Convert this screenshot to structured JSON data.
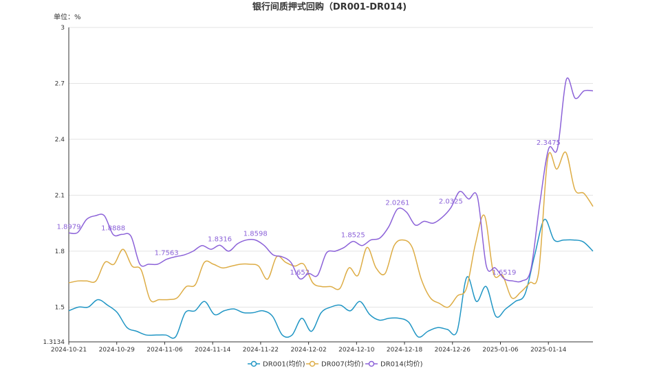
{
  "chart_data": {
    "type": "line",
    "title": "银行间质押式回购（DR001-DR014)",
    "unit_label": "单位：%",
    "ylim": [
      1.3134,
      3
    ],
    "y_ticks": [
      "1.3134",
      "1.5",
      "1.8",
      "2.1",
      "2.4",
      "2.7",
      "3"
    ],
    "x_ticks": [
      "2024-10-21",
      "2024-10-29",
      "2024-11-06",
      "2024-11-14",
      "2024-11-22",
      "2024-12-02",
      "2024-12-10",
      "2024-12-18",
      "2024-12-26",
      "2025-01-06",
      "2025-01-14"
    ],
    "grid": "horizontal",
    "legend_position": "bottom-center",
    "series": [
      {
        "name": "DR001(均价)",
        "color": "#1f95c4",
        "values": [
          1.48,
          1.5,
          1.5,
          1.54,
          1.51,
          1.47,
          1.39,
          1.37,
          1.35,
          1.35,
          1.35,
          1.34,
          1.47,
          1.48,
          1.53,
          1.46,
          1.48,
          1.49,
          1.47,
          1.47,
          1.48,
          1.45,
          1.35,
          1.35,
          1.44,
          1.37,
          1.47,
          1.5,
          1.51,
          1.48,
          1.53,
          1.46,
          1.43,
          1.44,
          1.44,
          1.42,
          1.34,
          1.37,
          1.39,
          1.38,
          1.37,
          1.66,
          1.53,
          1.61,
          1.45,
          1.49,
          1.53,
          1.57,
          1.78,
          1.97,
          1.86,
          1.86,
          1.86,
          1.85,
          1.8
        ]
      },
      {
        "name": "DR007(均价)",
        "color": "#ddac44",
        "values": [
          1.63,
          1.64,
          1.64,
          1.64,
          1.74,
          1.73,
          1.81,
          1.72,
          1.7,
          1.54,
          1.54,
          1.54,
          1.55,
          1.61,
          1.62,
          1.74,
          1.73,
          1.71,
          1.72,
          1.73,
          1.73,
          1.72,
          1.65,
          1.77,
          1.74,
          1.72,
          1.73,
          1.63,
          1.61,
          1.61,
          1.6,
          1.71,
          1.67,
          1.82,
          1.71,
          1.68,
          1.83,
          1.86,
          1.82,
          1.65,
          1.55,
          1.52,
          1.5,
          1.56,
          1.6,
          1.84,
          1.99,
          1.68,
          1.67,
          1.55,
          1.58,
          1.63,
          1.69,
          2.3,
          2.24,
          2.33,
          2.13,
          2.11,
          2.04
        ]
      },
      {
        "name": "DR014(均价)",
        "color": "#8b61d8",
        "values": [
          1.8979,
          1.9,
          1.97,
          1.99,
          1.99,
          1.8888,
          1.89,
          1.88,
          1.73,
          1.73,
          1.73,
          1.7563,
          1.77,
          1.78,
          1.8,
          1.83,
          1.81,
          1.8316,
          1.8,
          1.84,
          1.86,
          1.8598,
          1.83,
          1.78,
          1.77,
          1.74,
          1.652,
          1.68,
          1.67,
          1.79,
          1.8,
          1.82,
          1.8525,
          1.83,
          1.86,
          1.87,
          1.93,
          2.0261,
          2.01,
          1.94,
          1.96,
          1.95,
          1.98,
          2.0325,
          2.12,
          2.08,
          2.09,
          1.72,
          1.71,
          1.6519,
          1.64,
          1.64,
          1.7,
          2.05,
          2.3475,
          2.35,
          2.72,
          2.62,
          2.66,
          2.66
        ]
      }
    ],
    "data_labels": [
      {
        "series": 2,
        "index": 0,
        "text": "1.8979"
      },
      {
        "series": 2,
        "index": 5,
        "text": "1.8888"
      },
      {
        "series": 2,
        "index": 11,
        "text": "1.7563"
      },
      {
        "series": 2,
        "index": 17,
        "text": "1.8316"
      },
      {
        "series": 2,
        "index": 21,
        "text": "1.8598"
      },
      {
        "series": 2,
        "index": 26,
        "text": "1.652"
      },
      {
        "series": 2,
        "index": 32,
        "text": "1.8525"
      },
      {
        "series": 2,
        "index": 37,
        "text": "2.0261"
      },
      {
        "series": 2,
        "index": 43,
        "text": "2.0325"
      },
      {
        "series": 2,
        "index": 49,
        "text": "1.6519"
      },
      {
        "series": 2,
        "index": 54,
        "text": "2.3475"
      }
    ]
  }
}
